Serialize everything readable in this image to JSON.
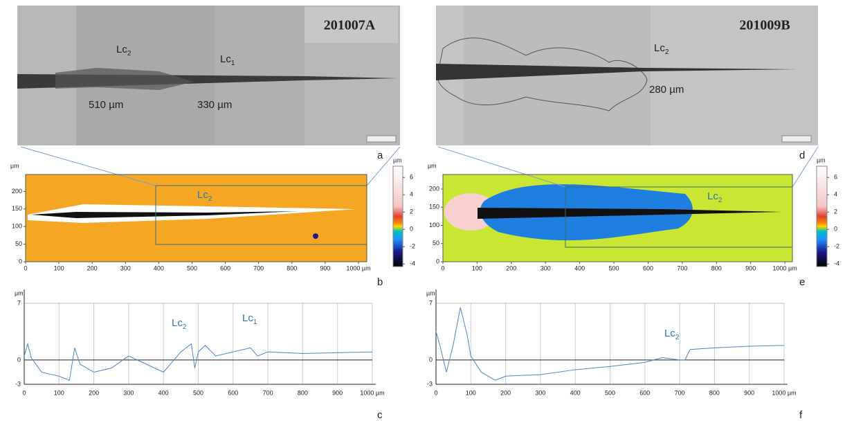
{
  "panels": {
    "a": {
      "label": "a",
      "sample": "201007A",
      "annotations": [
        {
          "text": "Lc",
          "sub": "2"
        },
        {
          "text": "Lc",
          "sub": "1"
        }
      ],
      "distances": [
        "510 µm",
        "330 µm"
      ]
    },
    "d": {
      "label": "d",
      "sample": "201009B",
      "annotations": [
        {
          "text": "Lc",
          "sub": "2"
        }
      ],
      "distances": [
        "280 µm"
      ]
    },
    "b": {
      "label": "b",
      "unit": "µm",
      "xlim": [
        0,
        1025
      ],
      "ylim": [
        0,
        248
      ],
      "xticks": [
        0,
        100,
        200,
        300,
        400,
        500,
        600,
        700,
        800,
        900,
        {
          "value": 1000,
          "label": "1000 µm"
        }
      ],
      "yticks": [
        0,
        50,
        100,
        150,
        200
      ],
      "colorbar_unit": "µm",
      "colorbar_lim": [
        -4.3,
        7.3
      ],
      "colorbar_ticks": [
        6,
        4,
        2,
        0,
        -2,
        -4
      ],
      "annotation": {
        "text": "Lc",
        "sub": "2"
      }
    },
    "e": {
      "label": "e",
      "unit": "µm",
      "xlim": [
        0,
        1022
      ],
      "ylim": [
        0,
        240
      ],
      "xticks": [
        0,
        100,
        200,
        300,
        400,
        500,
        600,
        700,
        800,
        900,
        {
          "value": 1000,
          "label": "1000 µm"
        }
      ],
      "yticks": [
        0,
        50,
        100,
        150,
        200
      ],
      "colorbar_unit": "µm",
      "colorbar_lim": [
        -4.3,
        7.3
      ],
      "colorbar_ticks": [
        6,
        4,
        2,
        0,
        -2,
        -4
      ],
      "annotation": {
        "text": "Lc",
        "sub": "2"
      }
    }
  },
  "chart_data": [
    {
      "type": "line",
      "label": "c",
      "unit": "µm",
      "x": [
        0,
        10,
        20,
        50,
        100,
        130,
        145,
        160,
        200,
        250,
        300,
        350,
        400,
        450,
        480,
        490,
        500,
        520,
        550,
        600,
        650,
        670,
        700,
        800,
        900,
        1000
      ],
      "series": [
        {
          "color": "#4a86c5",
          "values": [
            0.5,
            2.0,
            0.3,
            -1.5,
            -2.0,
            -2.5,
            1.5,
            -0.5,
            -1.5,
            -1.0,
            0.5,
            -0.5,
            -1.5,
            1.0,
            2.0,
            -1.0,
            1.0,
            1.8,
            0.5,
            1.0,
            1.5,
            0.5,
            1.0,
            0.8,
            0.9,
            1.0
          ]
        }
      ],
      "xlim": [
        0,
        1000
      ],
      "ylim": [
        -3,
        7
      ],
      "xticks": [
        0,
        100,
        200,
        300,
        400,
        500,
        600,
        700,
        800,
        900,
        {
          "value": 1000,
          "label": "1000 µm"
        }
      ],
      "yticks": [
        -3,
        0,
        7
      ],
      "annotations": [
        {
          "text": "Lc",
          "sub": "2"
        },
        {
          "text": "Lc",
          "sub": "1"
        }
      ]
    },
    {
      "type": "line",
      "label": "f",
      "unit": "µm",
      "x": [
        0,
        10,
        30,
        50,
        70,
        90,
        100,
        130,
        170,
        200,
        300,
        400,
        500,
        600,
        650,
        700,
        715,
        730,
        800,
        900,
        1000
      ],
      "series": [
        {
          "color": "#4a86c5",
          "values": [
            3.5,
            2.0,
            -1.5,
            2.0,
            6.5,
            3.0,
            0.5,
            -1.5,
            -2.5,
            -2.0,
            -1.8,
            -1.2,
            -0.8,
            -0.3,
            0.3,
            0.0,
            0.0,
            1.3,
            1.5,
            1.7,
            1.8
          ]
        }
      ],
      "xlim": [
        0,
        1000
      ],
      "ylim": [
        -3,
        7
      ],
      "xticks": [
        0,
        100,
        200,
        300,
        400,
        500,
        600,
        700,
        800,
        900,
        {
          "value": 1000,
          "label": "1000 µm"
        }
      ],
      "yticks": [
        -3,
        0,
        7
      ],
      "annotations": [
        {
          "text": "Lc",
          "sub": "2"
        }
      ]
    }
  ]
}
